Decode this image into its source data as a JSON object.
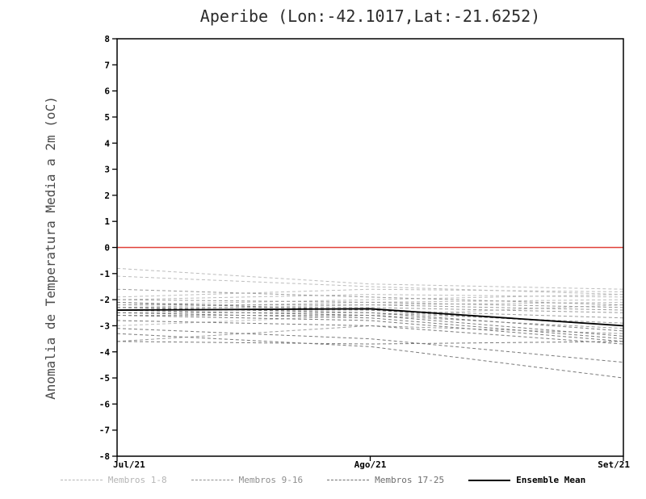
{
  "chart_data": {
    "type": "line",
    "title": "Aperibe (Lon:-42.1017,Lat:-21.6252)",
    "ylabel": "Anomalia de Temperatura Media a 2m (oC)",
    "xlabel": "",
    "x_categories": [
      "Jul/21",
      "Ago/21",
      "Set/21"
    ],
    "ylim": [
      -8,
      8
    ],
    "ytick_step": 1,
    "grid": false,
    "legend_position": "bottom",
    "zero_line": {
      "value": 0,
      "color": "#e04038"
    },
    "groups": [
      {
        "name": "Membros 1-8",
        "color": "#bdbdbd",
        "style": "dashed"
      },
      {
        "name": "Membros 9-16",
        "color": "#9c9c9c",
        "style": "dashed"
      },
      {
        "name": "Membros 17-25",
        "color": "#7a7a7a",
        "style": "dashed"
      },
      {
        "name": "Ensemble Mean",
        "color": "#000000",
        "style": "solid"
      }
    ],
    "series": [
      {
        "name": "Membro 1",
        "group": 0,
        "values": [
          -0.8,
          -1.4,
          -1.6
        ]
      },
      {
        "name": "Membro 2",
        "group": 0,
        "values": [
          -1.1,
          -1.5,
          -1.8
        ]
      },
      {
        "name": "Membro 3",
        "group": 0,
        "values": [
          -1.9,
          -1.6,
          -1.7
        ]
      },
      {
        "name": "Membro 4",
        "group": 0,
        "values": [
          -2.0,
          -1.8,
          -1.9
        ]
      },
      {
        "name": "Membro 5",
        "group": 0,
        "values": [
          -2.2,
          -2.0,
          -1.8
        ]
      },
      {
        "name": "Membro 6",
        "group": 0,
        "values": [
          -2.3,
          -2.1,
          -2.0
        ]
      },
      {
        "name": "Membro 7",
        "group": 0,
        "values": [
          -2.4,
          -2.2,
          -2.1
        ]
      },
      {
        "name": "Membro 8",
        "group": 0,
        "values": [
          -3.0,
          -2.6,
          -2.2
        ]
      },
      {
        "name": "Membro 9",
        "group": 1,
        "values": [
          -1.6,
          -1.9,
          -2.2
        ]
      },
      {
        "name": "Membro 10",
        "group": 1,
        "values": [
          -2.0,
          -2.1,
          -2.3
        ]
      },
      {
        "name": "Membro 11",
        "group": 1,
        "values": [
          -2.2,
          -2.2,
          -2.4
        ]
      },
      {
        "name": "Membro 12",
        "group": 1,
        "values": [
          -2.3,
          -2.3,
          -2.5
        ]
      },
      {
        "name": "Membro 13",
        "group": 1,
        "values": [
          -2.4,
          -2.4,
          -2.7
        ]
      },
      {
        "name": "Membro 14",
        "group": 1,
        "values": [
          -2.5,
          -2.5,
          -2.9
        ]
      },
      {
        "name": "Membro 15",
        "group": 1,
        "values": [
          -2.6,
          -2.6,
          -3.1
        ]
      },
      {
        "name": "Membro 16",
        "group": 1,
        "values": [
          -3.6,
          -3.0,
          -3.3
        ]
      },
      {
        "name": "Membro 17",
        "group": 2,
        "values": [
          -2.1,
          -2.4,
          -3.0
        ]
      },
      {
        "name": "Membro 18",
        "group": 2,
        "values": [
          -2.3,
          -2.5,
          -3.2
        ]
      },
      {
        "name": "Membro 19",
        "group": 2,
        "values": [
          -2.4,
          -2.6,
          -3.4
        ]
      },
      {
        "name": "Membro 20",
        "group": 2,
        "values": [
          -2.5,
          -2.7,
          -3.5
        ]
      },
      {
        "name": "Membro 21",
        "group": 2,
        "values": [
          -2.6,
          -2.8,
          -3.6
        ]
      },
      {
        "name": "Membro 22",
        "group": 2,
        "values": [
          -2.8,
          -3.0,
          -3.7
        ]
      },
      {
        "name": "Membro 23",
        "group": 2,
        "values": [
          -3.1,
          -3.5,
          -4.4
        ]
      },
      {
        "name": "Membro 24",
        "group": 2,
        "values": [
          -3.3,
          -3.8,
          -5.0
        ]
      },
      {
        "name": "Membro 25",
        "group": 2,
        "values": [
          -3.6,
          -3.7,
          -3.6
        ]
      },
      {
        "name": "Ensemble Mean",
        "group": 3,
        "values": [
          -2.4,
          -2.35,
          -3.0
        ]
      }
    ]
  }
}
